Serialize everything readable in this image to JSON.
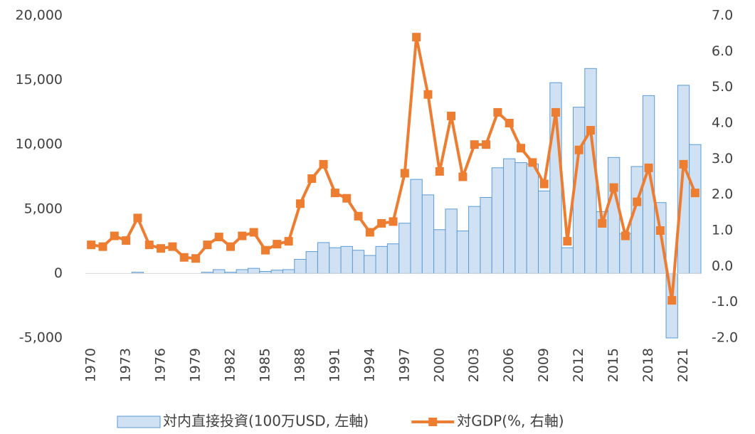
{
  "chart_data": {
    "type": "bar-line",
    "categories": [
      "1970",
      null,
      null,
      "1973",
      null,
      null,
      "1976",
      null,
      null,
      "1979",
      null,
      null,
      "1982",
      null,
      null,
      "1985",
      null,
      null,
      "1988",
      null,
      null,
      "1991",
      null,
      null,
      "1994",
      null,
      null,
      "1997",
      null,
      null,
      "2000",
      null,
      null,
      "2003",
      null,
      null,
      "2006",
      null,
      null,
      "2009",
      null,
      null,
      "2012",
      null,
      null,
      "2015",
      null,
      null,
      "2018",
      null,
      null,
      "2021",
      null
    ],
    "series": [
      {
        "name": "対内直接投資(100万USD, 左軸)",
        "type": "bar",
        "axis": "y",
        "color": "#cfe1f3",
        "edge_color": "#5b9bd5",
        "values": [
          0,
          0,
          0,
          0,
          100,
          0,
          0,
          0,
          0,
          0,
          100,
          300,
          100,
          300,
          400,
          160,
          260,
          300,
          1100,
          1700,
          2400,
          2000,
          2100,
          1800,
          1400,
          2100,
          2300,
          3900,
          7300,
          6100,
          3400,
          5000,
          3300,
          5200,
          5900,
          8200,
          8900,
          8600,
          8500,
          6400,
          14800,
          2000,
          12900,
          15900,
          4800,
          9000,
          3100,
          8300,
          13800,
          5500,
          -5000,
          14600,
          10000
        ]
      },
      {
        "name": "対GDP(%, 右軸)",
        "type": "line",
        "axis": "y2",
        "color": "#ed7d31",
        "values": [
          0.6,
          0.55,
          0.85,
          0.72,
          1.35,
          0.6,
          0.5,
          0.55,
          0.25,
          0.22,
          0.6,
          0.82,
          0.55,
          0.85,
          0.95,
          0.45,
          0.62,
          0.7,
          1.75,
          2.45,
          2.85,
          2.05,
          1.9,
          1.4,
          0.95,
          1.2,
          1.25,
          2.6,
          6.4,
          4.8,
          2.65,
          4.2,
          2.5,
          3.4,
          3.4,
          4.3,
          4.0,
          3.3,
          2.9,
          2.3,
          4.3,
          0.7,
          3.25,
          3.8,
          1.2,
          2.2,
          0.85,
          1.8,
          2.75,
          1.0,
          -0.95,
          2.85,
          2.05
        ]
      }
    ],
    "ylim": [
      -5000,
      20000
    ],
    "yticks": [
      {
        "value": -5000,
        "label": "-5,000"
      },
      0,
      {
        "value": 5000,
        "label": "5,000"
      },
      {
        "value": 10000,
        "label": "10,000"
      },
      {
        "value": 15000,
        "label": "15,000"
      },
      {
        "value": 20000,
        "label": "20,000"
      }
    ],
    "y2lim": [
      -2,
      7
    ],
    "y2ticks": [
      {
        "value": -2,
        "label": "-2.0"
      },
      {
        "value": -1,
        "label": "-1.0"
      },
      {
        "value": 0,
        "label": "0.0"
      },
      {
        "value": 1,
        "label": "1.0"
      },
      {
        "value": 2,
        "label": "2.0"
      },
      {
        "value": 3,
        "label": "3.0"
      },
      {
        "value": 4,
        "label": "4.0"
      },
      {
        "value": 5,
        "label": "5.0"
      },
      {
        "value": 6,
        "label": "6.0"
      },
      {
        "value": 7,
        "label": "7.0"
      }
    ],
    "grid": false,
    "legend": "bottom"
  }
}
